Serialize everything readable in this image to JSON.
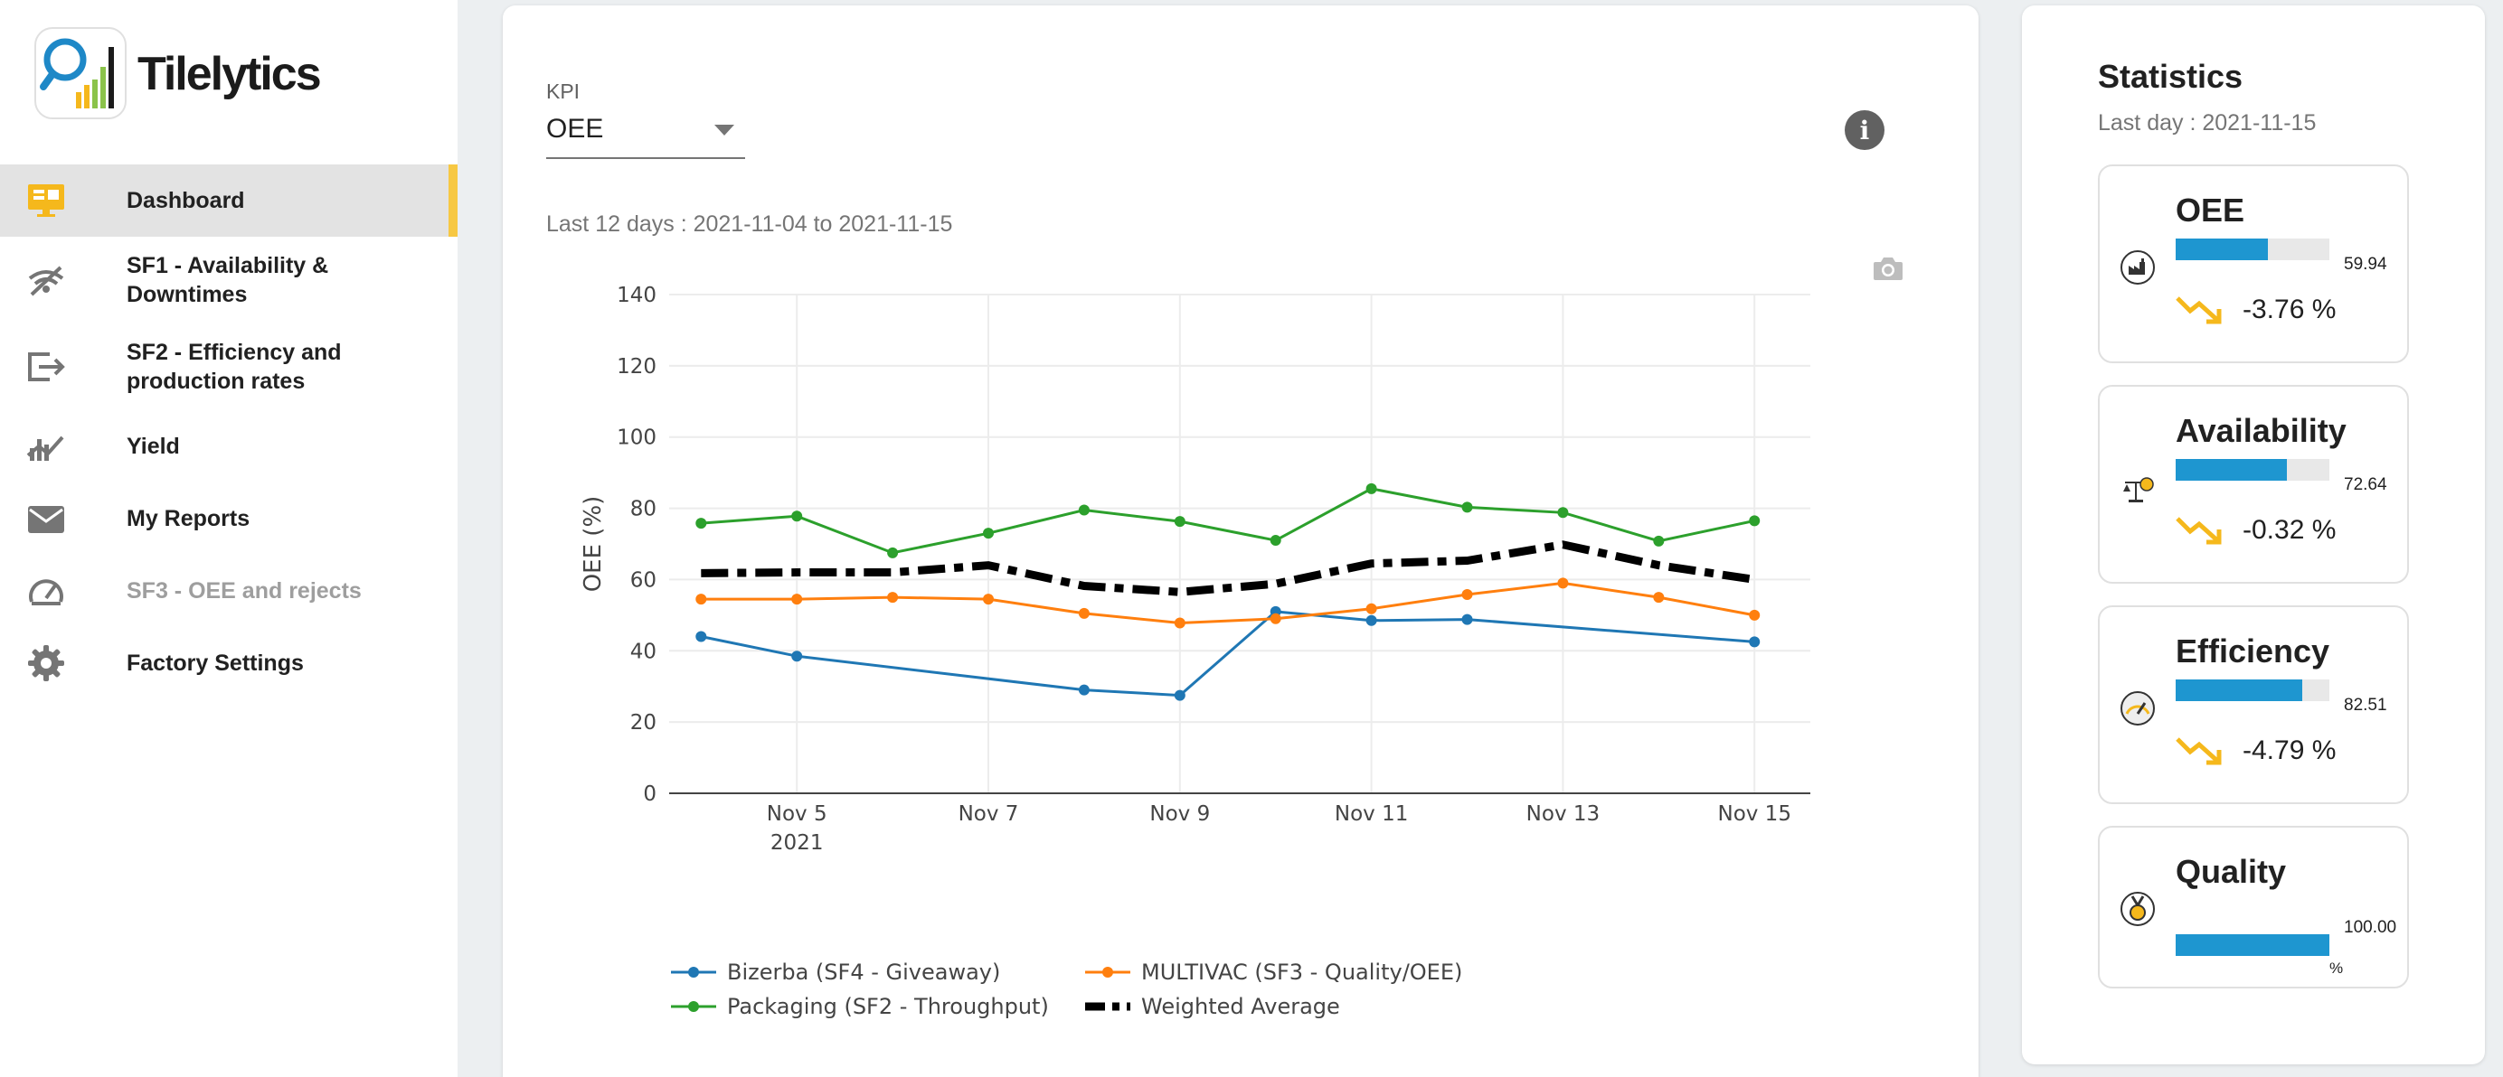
{
  "app": {
    "brand": "Tilelytics"
  },
  "sidebar": {
    "items": [
      {
        "label": "Dashboard",
        "icon": "monitor-icon"
      },
      {
        "label": "SF1 - Availability & Downtimes",
        "icon": "signal-icon"
      },
      {
        "label": "SF2 - Efficiency and production rates",
        "icon": "export-icon"
      },
      {
        "label": "Yield",
        "icon": "chart-trend-icon"
      },
      {
        "label": "My Reports",
        "icon": "mail-icon"
      },
      {
        "label": "SF3 - OEE and rejects",
        "icon": "speedometer-icon"
      },
      {
        "label": "Factory Settings",
        "icon": "gear-icon"
      }
    ]
  },
  "main": {
    "kpi_label": "KPI",
    "kpi_value": "OEE",
    "range_text": "Last 12 days : 2021-11-04 to 2021-11-15"
  },
  "chart_data": {
    "type": "line",
    "ylabel": "OEE (%)",
    "xlabel": "",
    "ylim": [
      0,
      140
    ],
    "yticks": [
      0,
      20,
      40,
      60,
      80,
      100,
      120,
      140
    ],
    "xticks": [
      {
        "date": "2021-11-05",
        "label": "Nov 5",
        "sublabel": "2021"
      },
      {
        "date": "2021-11-07",
        "label": "Nov 7"
      },
      {
        "date": "2021-11-09",
        "label": "Nov 9"
      },
      {
        "date": "2021-11-11",
        "label": "Nov 11"
      },
      {
        "date": "2021-11-13",
        "label": "Nov 13"
      },
      {
        "date": "2021-11-15",
        "label": "Nov 15"
      }
    ],
    "grid": true,
    "legend_position": "bottom",
    "series": [
      {
        "name": "Bizerba (SF4 - Giveaway)",
        "color": "#1f77b4",
        "style": "solid-markers",
        "points": [
          {
            "x": "2021-11-04",
            "y": 44
          },
          {
            "x": "2021-11-05",
            "y": 38.5
          },
          {
            "x": "2021-11-08",
            "y": 29
          },
          {
            "x": "2021-11-09",
            "y": 27.5
          },
          {
            "x": "2021-11-10",
            "y": 51
          },
          {
            "x": "2021-11-11",
            "y": 48.5
          },
          {
            "x": "2021-11-12",
            "y": 48.8
          },
          {
            "x": "2021-11-15",
            "y": 42.5
          }
        ]
      },
      {
        "name": "MULTIVAC (SF3 - Quality/OEE)",
        "color": "#ff7f0e",
        "style": "solid-markers",
        "points": [
          {
            "x": "2021-11-04",
            "y": 54.5
          },
          {
            "x": "2021-11-05",
            "y": 54.5
          },
          {
            "x": "2021-11-06",
            "y": 55
          },
          {
            "x": "2021-11-07",
            "y": 54.5
          },
          {
            "x": "2021-11-08",
            "y": 50.5
          },
          {
            "x": "2021-11-09",
            "y": 47.8
          },
          {
            "x": "2021-11-10",
            "y": 49
          },
          {
            "x": "2021-11-11",
            "y": 51.8
          },
          {
            "x": "2021-11-12",
            "y": 55.8
          },
          {
            "x": "2021-11-13",
            "y": 59
          },
          {
            "x": "2021-11-14",
            "y": 55
          },
          {
            "x": "2021-11-15",
            "y": 50
          }
        ]
      },
      {
        "name": "Packaging (SF2 - Throughput)",
        "color": "#2ca02c",
        "style": "solid-markers",
        "points": [
          {
            "x": "2021-11-04",
            "y": 75.8
          },
          {
            "x": "2021-11-05",
            "y": 77.8
          },
          {
            "x": "2021-11-06",
            "y": 67.5
          },
          {
            "x": "2021-11-07",
            "y": 73
          },
          {
            "x": "2021-11-08",
            "y": 79.5
          },
          {
            "x": "2021-11-09",
            "y": 76.3
          },
          {
            "x": "2021-11-10",
            "y": 71
          },
          {
            "x": "2021-11-11",
            "y": 85.5
          },
          {
            "x": "2021-11-12",
            "y": 80.3
          },
          {
            "x": "2021-11-13",
            "y": 78.8
          },
          {
            "x": "2021-11-14",
            "y": 70.8
          },
          {
            "x": "2021-11-15",
            "y": 76.5
          }
        ]
      },
      {
        "name": "Weighted Average",
        "color": "#000000",
        "style": "dashdot",
        "points": [
          {
            "x": "2021-11-04",
            "y": 61.8
          },
          {
            "x": "2021-11-05",
            "y": 62
          },
          {
            "x": "2021-11-06",
            "y": 62
          },
          {
            "x": "2021-11-07",
            "y": 64
          },
          {
            "x": "2021-11-08",
            "y": 58.2
          },
          {
            "x": "2021-11-09",
            "y": 56.5
          },
          {
            "x": "2021-11-10",
            "y": 58.8
          },
          {
            "x": "2021-11-11",
            "y": 64.5
          },
          {
            "x": "2021-11-12",
            "y": 65.3
          },
          {
            "x": "2021-11-13",
            "y": 69.8
          },
          {
            "x": "2021-11-14",
            "y": 64
          },
          {
            "x": "2021-11-15",
            "y": 60
          }
        ]
      }
    ]
  },
  "stats": {
    "title": "Statistics",
    "date": "Last day : 2021-11-15",
    "items": [
      {
        "name": "OEE",
        "value": "59.94",
        "fraction": 0.5994,
        "trend": "-3.76 %",
        "icon": "factory-icon"
      },
      {
        "name": "Availability",
        "value": "72.64",
        "fraction": 0.7264,
        "trend": "-0.32 %",
        "icon": "scale-icon"
      },
      {
        "name": "Efficiency",
        "value": "82.51",
        "fraction": 0.8251,
        "trend": "-4.79 %",
        "icon": "gauge-icon"
      },
      {
        "name": "Quality",
        "value": "100.00",
        "unit": "%",
        "fraction": 1.0,
        "icon": "medal-icon"
      }
    ],
    "bar_color": "#1e96d0",
    "trend_color": "#f5b81c"
  }
}
